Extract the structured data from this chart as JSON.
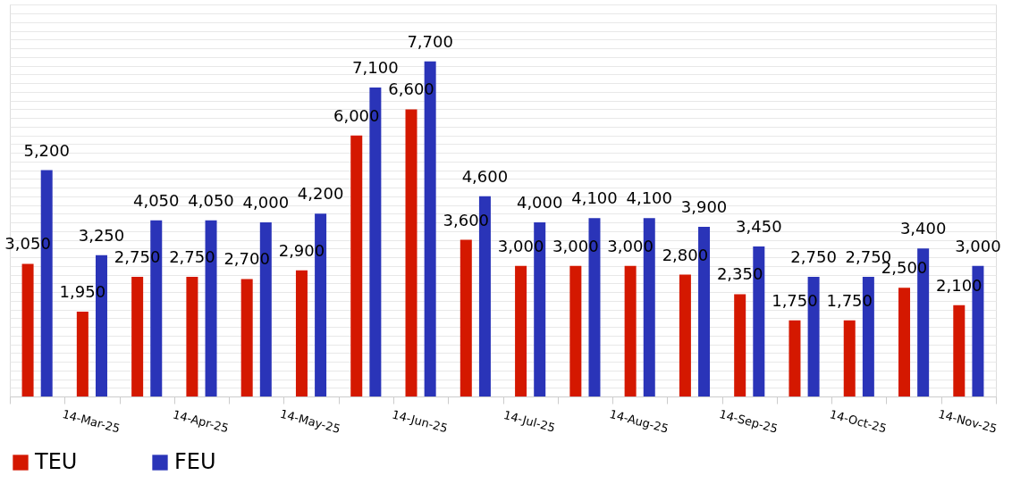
{
  "chart_data": {
    "type": "bar",
    "categories": [
      null,
      "14-Mar-25",
      null,
      "14-Apr-25",
      null,
      "14-May-25",
      null,
      "14-Jun-25",
      null,
      "14-Jul-25",
      null,
      "14-Aug-25",
      null,
      "14-Sep-25",
      null,
      "14-Oct-25",
      null,
      "14-Nov-25"
    ],
    "series": [
      {
        "name": "TEU",
        "color": "#d41800",
        "values": [
          3050,
          1950,
          2750,
          2750,
          2700,
          2900,
          6000,
          6600,
          3600,
          3000,
          3000,
          3000,
          2800,
          2350,
          1750,
          1750,
          2500,
          2100
        ],
        "value_labels": [
          "3,050",
          "1,950",
          "2,750",
          "2,750",
          "2,700",
          "2,900",
          "6,000",
          "6,600",
          "3,600",
          "3,000",
          "3,000",
          "3,000",
          "2,800",
          "2,350",
          "1,750",
          "1,750",
          "2,500",
          "2,100"
        ]
      },
      {
        "name": "FEU",
        "color": "#2a34b8",
        "values": [
          5200,
          3250,
          4050,
          4050,
          4000,
          4200,
          7100,
          7700,
          4600,
          4000,
          4100,
          4100,
          3900,
          3450,
          2750,
          2750,
          3400,
          3000
        ],
        "value_labels": [
          "5,200",
          "3,250",
          "4,050",
          "4,050",
          "4,000",
          "4,200",
          "7,100",
          "7,700",
          "4,600",
          "4,000",
          "4,100",
          "4,100",
          "3,900",
          "3,450",
          "2,750",
          "2,750",
          "3,400",
          "3,000"
        ]
      }
    ],
    "tick_labels": "x",
    "grid": "y",
    "legend": "bottom"
  }
}
